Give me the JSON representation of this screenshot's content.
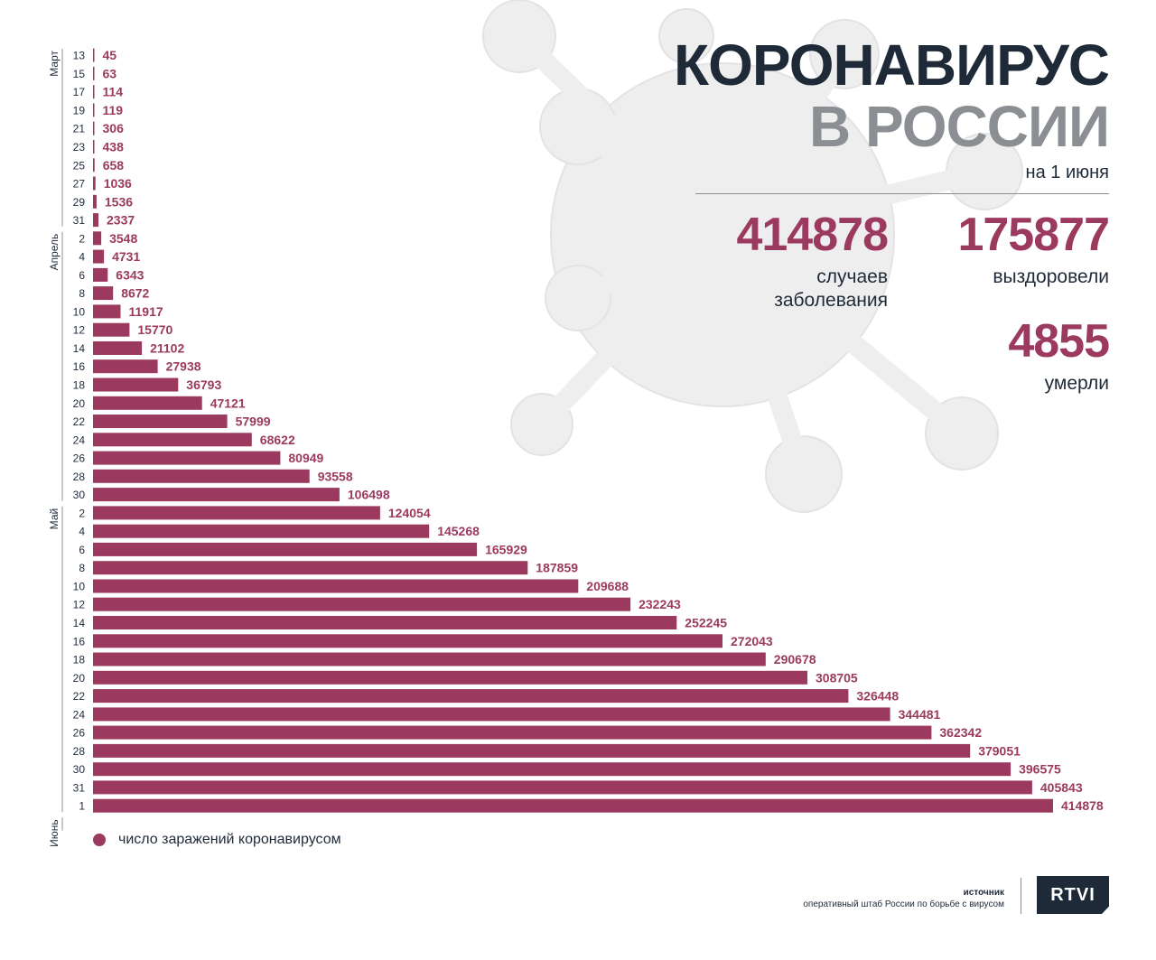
{
  "header": {
    "title_line1": "КОРОНАВИРУС",
    "title_line2": "В РОССИИ",
    "date": "на 1 июня"
  },
  "stats": {
    "cases": {
      "value": "414878",
      "label": "случаев\nзаболевания"
    },
    "recovered": {
      "value": "175877",
      "label": "выздоровели"
    },
    "deaths": {
      "value": "4855",
      "label": "умерли"
    }
  },
  "legend": {
    "label": "число заражений коронавирусом"
  },
  "source": {
    "title": "источник",
    "text": "оперативный штаб России по борьбе с вирусом"
  },
  "logo": {
    "text": "RTVI"
  },
  "colors": {
    "bar": "#9b3a5e",
    "dark": "#1f2a38",
    "gray": "#8b8f94"
  },
  "chart_data": {
    "type": "bar",
    "orientation": "horizontal",
    "months": [
      {
        "name": "Март",
        "start": 0,
        "end": 9
      },
      {
        "name": "Апрель",
        "start": 10,
        "end": 24
      },
      {
        "name": "Май",
        "start": 25,
        "end": 41
      },
      {
        "name": "Июнь",
        "start": 42,
        "end": 42
      }
    ],
    "categories": [
      "13",
      "15",
      "17",
      "19",
      "21",
      "23",
      "25",
      "27",
      "29",
      "31",
      "2",
      "4",
      "6",
      "8",
      "10",
      "12",
      "14",
      "16",
      "18",
      "20",
      "22",
      "24",
      "26",
      "28",
      "30",
      "2",
      "4",
      "6",
      "8",
      "10",
      "12",
      "14",
      "16",
      "18",
      "20",
      "22",
      "24",
      "26",
      "28",
      "30",
      "31",
      "1"
    ],
    "values": [
      45,
      63,
      114,
      119,
      306,
      438,
      658,
      1036,
      1536,
      2337,
      3548,
      4731,
      6343,
      8672,
      11917,
      15770,
      21102,
      27938,
      36793,
      47121,
      57999,
      68622,
      80949,
      93558,
      106498,
      124054,
      145268,
      165929,
      187859,
      209688,
      232243,
      252245,
      272043,
      290678,
      308705,
      326448,
      344481,
      362342,
      379051,
      396575,
      405843,
      414878
    ],
    "series_name": "число заражений коронавирусом",
    "xlim": [
      0,
      414878
    ],
    "grid": false,
    "legend_position": "bottom-left"
  }
}
